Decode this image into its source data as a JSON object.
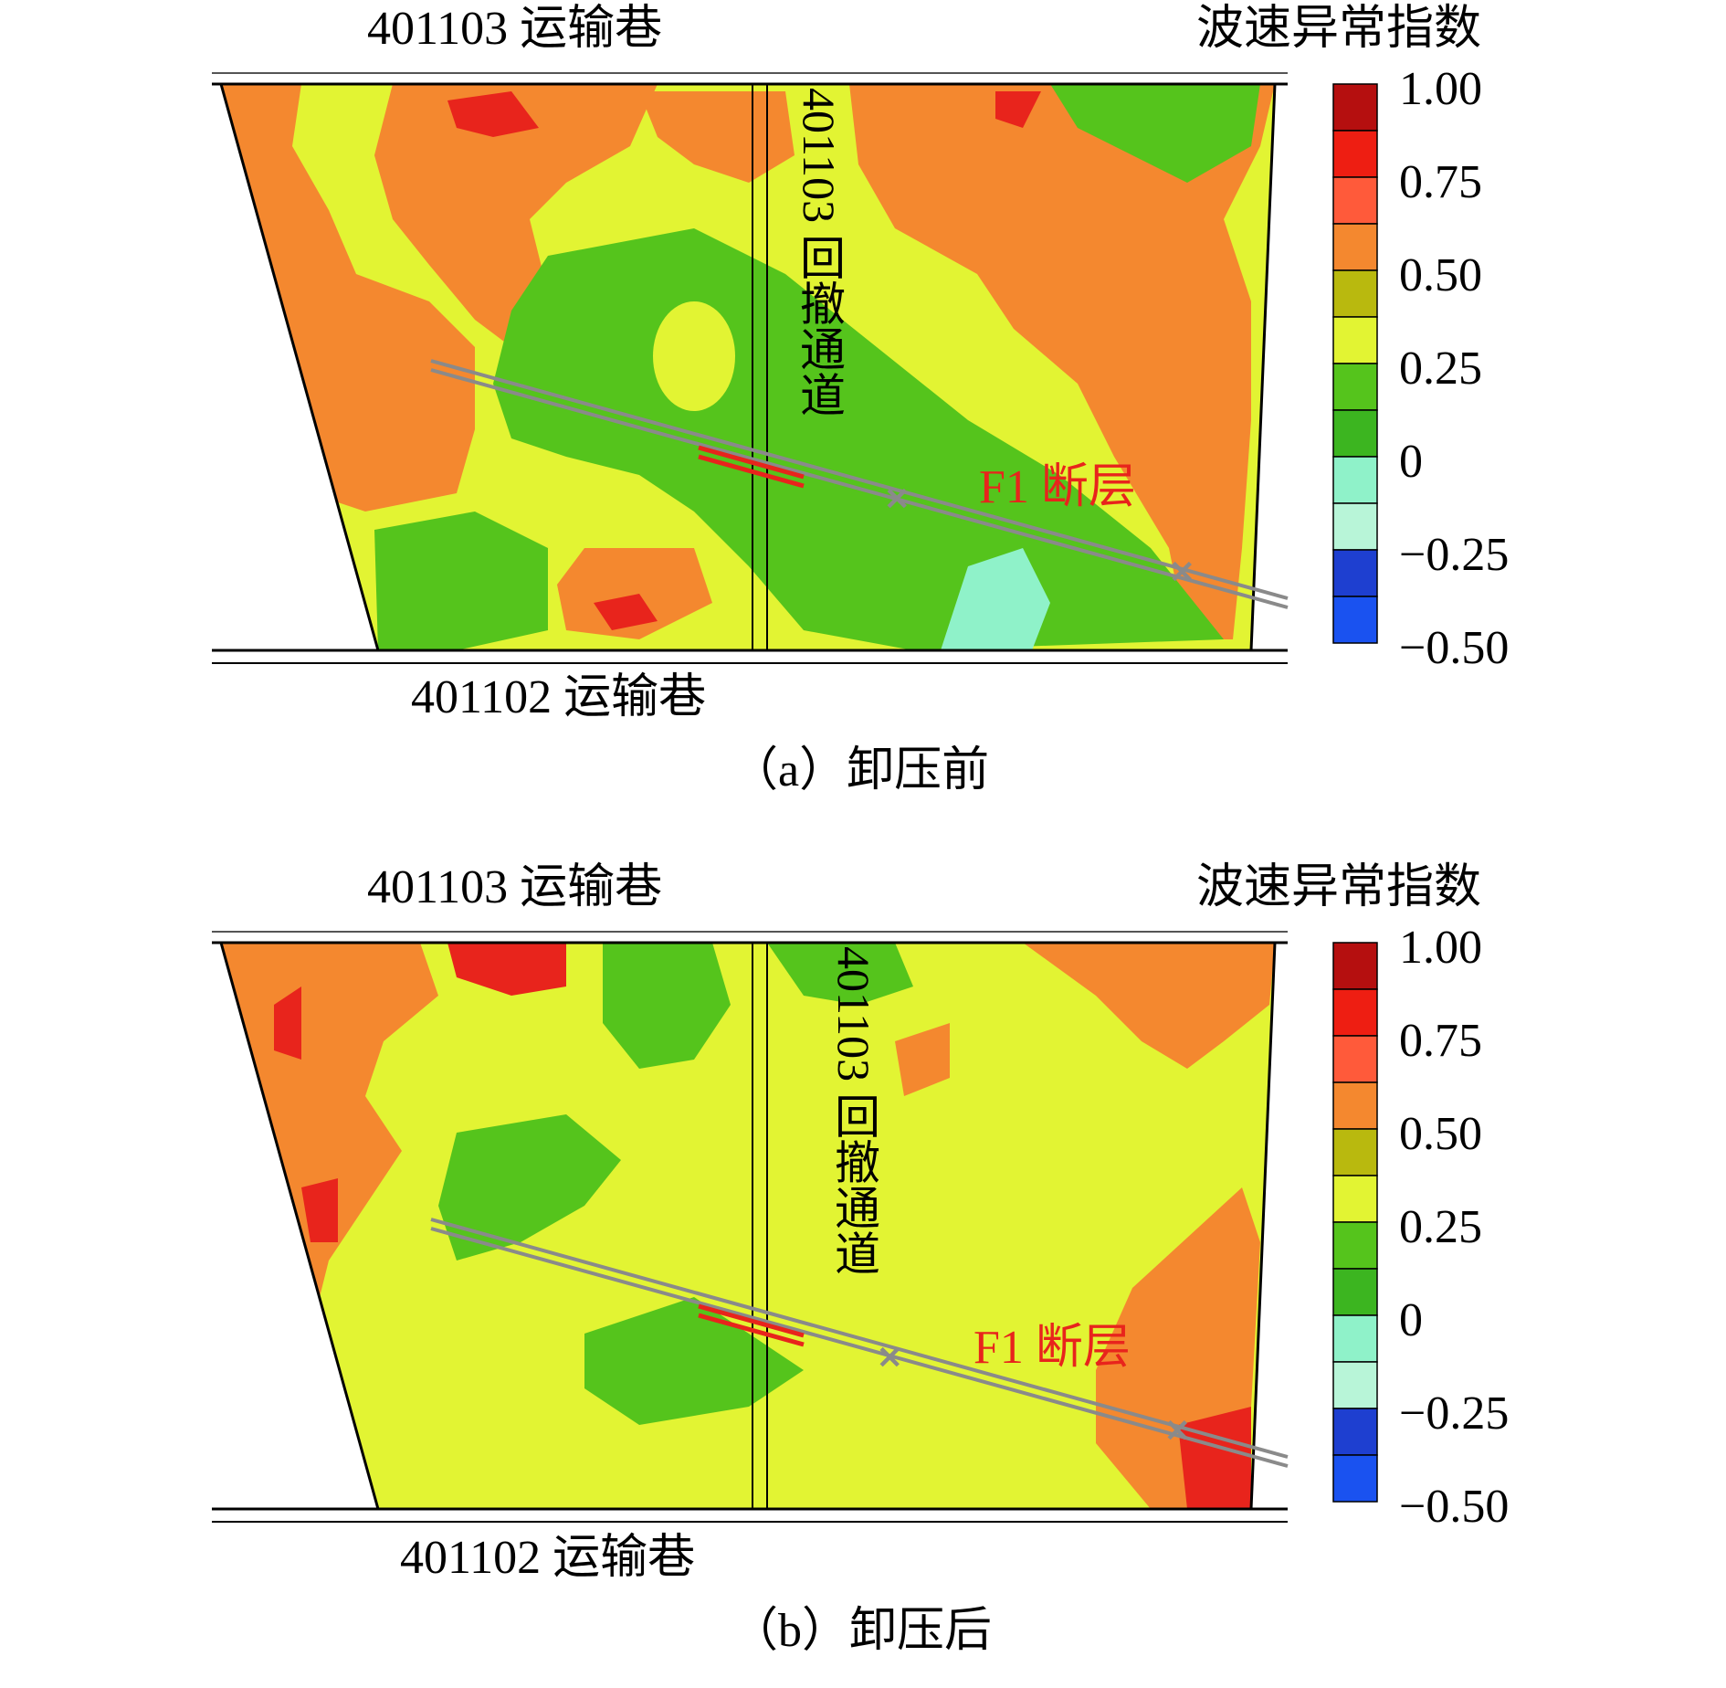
{
  "colors": {
    "orange": "#f4882f",
    "yellow": "#e2f433",
    "green": "#55c41c",
    "lightgreen": "#6ad61a",
    "red": "#e8241c",
    "darkred": "#b50f0f",
    "teal": "#8ff2c9",
    "grey": "#8a8a8a"
  },
  "legend": {
    "title": "波速异常指数",
    "ticks": [
      "1.00",
      "0.75",
      "0.50",
      "0.25",
      "0",
      "−0.25",
      "−0.50"
    ],
    "swatches": [
      "#b50f0f",
      "#ee1e12",
      "#ff5a3a",
      "#f4882f",
      "#b9b90e",
      "#e2f433",
      "#55c41c",
      "#3cb520",
      "#8ff2c9",
      "#b8f5d8",
      "#1e3fd0",
      "#1a52f0"
    ]
  },
  "panels": [
    {
      "caption": "（a）卸压前",
      "top_roadway": "401103 运输巷",
      "bottom_roadway": "401102 运输巷",
      "retreat_channel": "401103 回撤通道",
      "fault": "F1 断层"
    },
    {
      "caption": "（b）卸压后",
      "top_roadway": "401103 运输巷",
      "bottom_roadway": "401102 运输巷",
      "retreat_channel": "401103 回撤通道",
      "fault": "F1 断层"
    }
  ]
}
